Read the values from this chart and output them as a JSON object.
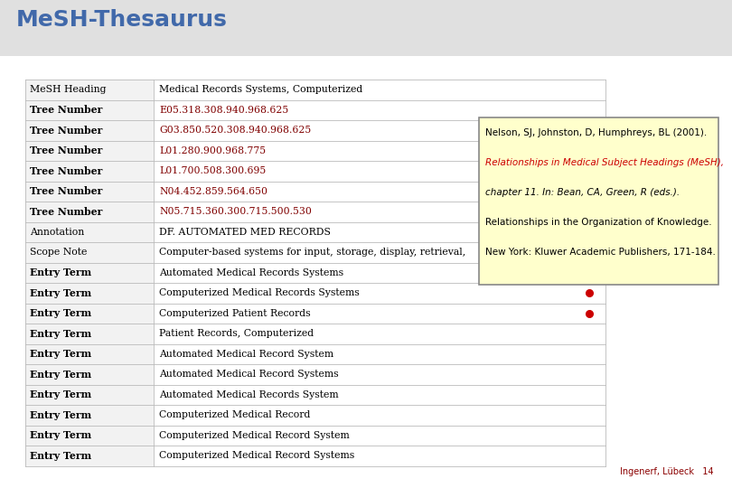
{
  "title": "MeSH-Thesaurus",
  "title_color": "#4169AA",
  "title_bg_color": "#E8E8E8",
  "bg_color": "#FFFFFF",
  "footer_text": "Ingenerf, Lübeck",
  "footer_page": "14",
  "footer_color": "#8B0000",
  "table_rows": [
    {
      "col1": "MeSH Heading",
      "col2": "Medical Records Systems, Computerized",
      "bold1": false,
      "link2": false,
      "dot": false
    },
    {
      "col1": "Tree Number",
      "col2": "E05.318.308.940.968.625",
      "bold1": true,
      "link2": true,
      "dot": false
    },
    {
      "col1": "Tree Number",
      "col2": "G03.850.520.308.940.968.625",
      "bold1": true,
      "link2": true,
      "dot": false
    },
    {
      "col1": "Tree Number",
      "col2": "L01.280.900.968.775",
      "bold1": true,
      "link2": true,
      "dot": false
    },
    {
      "col1": "Tree Number",
      "col2": "L01.700.508.300.695",
      "bold1": true,
      "link2": true,
      "dot": false
    },
    {
      "col1": "Tree Number",
      "col2": "N04.452.859.564.650",
      "bold1": true,
      "link2": true,
      "dot": false
    },
    {
      "col1": "Tree Number",
      "col2": "N05.715.360.300.715.500.530",
      "bold1": true,
      "link2": true,
      "dot": false
    },
    {
      "col1": "Annotation",
      "col2": "DF. AUTOMATED MED RECORDS",
      "bold1": false,
      "link2": false,
      "dot": false
    },
    {
      "col1": "Scope Note",
      "col2": "Computer-based systems for input, storage, display, retrieval,",
      "bold1": false,
      "link2": false,
      "dot": false
    },
    {
      "col1": "Entry Term",
      "col2": "Automated Medical Records Systems",
      "bold1": true,
      "link2": false,
      "dot": true
    },
    {
      "col1": "Entry Term",
      "col2": "Computerized Medical Records Systems",
      "bold1": true,
      "link2": false,
      "dot": true
    },
    {
      "col1": "Entry Term",
      "col2": "Computerized Patient Records",
      "bold1": true,
      "link2": false,
      "dot": true
    },
    {
      "col1": "Entry Term",
      "col2": "Patient Records, Computerized",
      "bold1": true,
      "link2": false,
      "dot": false
    },
    {
      "col1": "Entry Term",
      "col2": "Automated Medical Record System",
      "bold1": true,
      "link2": false,
      "dot": false
    },
    {
      "col1": "Entry Term",
      "col2": "Automated Medical Record Systems",
      "bold1": true,
      "link2": false,
      "dot": false
    },
    {
      "col1": "Entry Term",
      "col2": "Automated Medical Records System",
      "bold1": true,
      "link2": false,
      "dot": false
    },
    {
      "col1": "Entry Term",
      "col2": "Computerized Medical Record",
      "bold1": true,
      "link2": false,
      "dot": false
    },
    {
      "col1": "Entry Term",
      "col2": "Computerized Medical Record System",
      "bold1": true,
      "link2": false,
      "dot": false
    },
    {
      "col1": "Entry Term",
      "col2": "Computerized Medical Record Systems",
      "bold1": true,
      "link2": false,
      "dot": false
    }
  ],
  "popup_lines": [
    {
      "text": "Nelson, SJ, Johnston, D, Humphreys, BL (2001).",
      "color": "#000000",
      "italic": false
    },
    {
      "text": "Relationships in Medical Subject Headings (MeSH),",
      "color": "#CC0000",
      "italic": true
    },
    {
      "text": "chapter 11. In: Bean, CA, Green, R (eds.).",
      "color": "#000000",
      "italic": true
    },
    {
      "text": "Relationships in the Organization of Knowledge.",
      "color": "#000000",
      "italic": false
    },
    {
      "text": "New York: Kluwer Academic Publishers, 171-184.",
      "color": "#000000",
      "italic": false
    }
  ],
  "popup_bg": "#FFFFCC",
  "popup_border": "#888888",
  "link_color": "#800000",
  "dot_color": "#CC0000",
  "table_font": "DejaVu Serif",
  "title_font": "DejaVu Sans",
  "table_fontsize": 7.8,
  "title_fontsize": 18
}
